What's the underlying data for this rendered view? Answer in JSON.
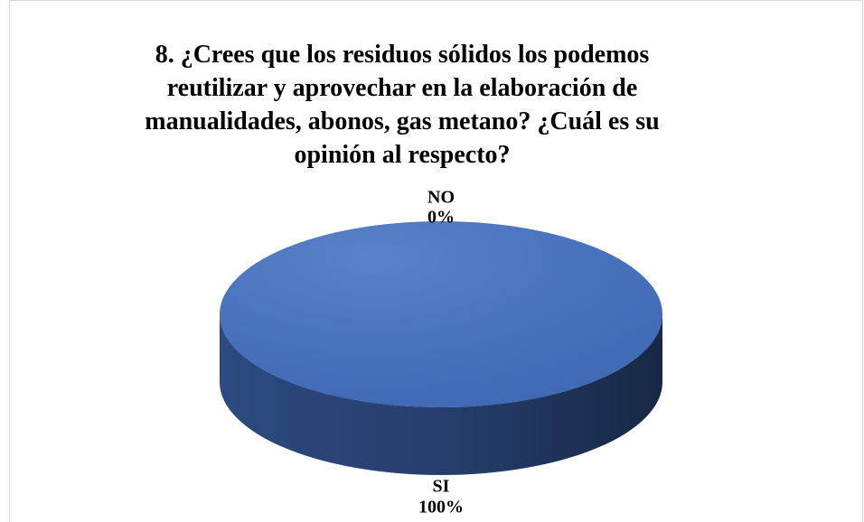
{
  "chart_data": {
    "type": "pie",
    "title": "8. ¿Crees que los residuos sólidos los podemos reutilizar y aprovechar en la elaboración de manualidades, abonos, gas metano? ¿Cuál es su opinión al respecto?",
    "categories": [
      "NO",
      "SI"
    ],
    "values": [
      0,
      100
    ],
    "value_labels": [
      "0%",
      "100%"
    ],
    "colors": [
      "#ed7d31",
      "#4472c4"
    ]
  }
}
